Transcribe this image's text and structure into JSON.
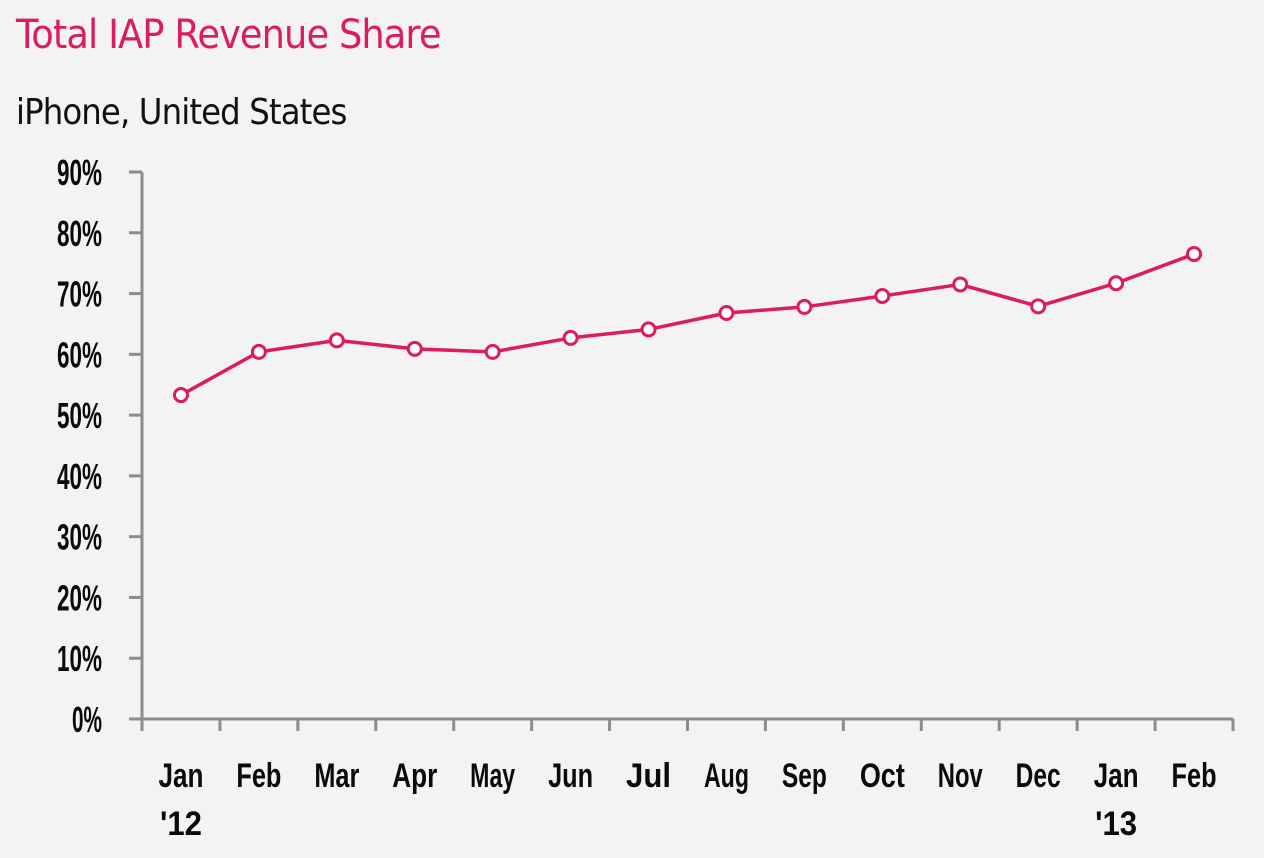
{
  "chart_data": {
    "type": "line",
    "title": "Total IAP Revenue Share",
    "subtitle": "iPhone, United States",
    "xlabel": "",
    "ylabel": "",
    "categories": [
      "Jan '12",
      "Feb",
      "Mar",
      "Apr",
      "May",
      "Jun",
      "Jul",
      "Aug",
      "Sep",
      "Oct",
      "Nov",
      "Dec",
      "Jan '13",
      "Feb"
    ],
    "x_tick_labels": [
      {
        "line1": "Jan",
        "line2": "'12"
      },
      {
        "line1": "Feb",
        "line2": ""
      },
      {
        "line1": "Mar",
        "line2": ""
      },
      {
        "line1": "Apr",
        "line2": ""
      },
      {
        "line1": "May",
        "line2": ""
      },
      {
        "line1": "Jun",
        "line2": ""
      },
      {
        "line1": "Jul",
        "line2": ""
      },
      {
        "line1": "Aug",
        "line2": ""
      },
      {
        "line1": "Sep",
        "line2": ""
      },
      {
        "line1": "Oct",
        "line2": ""
      },
      {
        "line1": "Nov",
        "line2": ""
      },
      {
        "line1": "Dec",
        "line2": ""
      },
      {
        "line1": "Jan",
        "line2": "'13"
      },
      {
        "line1": "Feb",
        "line2": ""
      }
    ],
    "series": [
      {
        "name": "Total IAP Revenue Share",
        "color": "#dd1c5b",
        "values": [
          53.3,
          60.4,
          62.3,
          60.9,
          60.4,
          62.7,
          64.1,
          66.8,
          67.8,
          69.6,
          71.5,
          67.9,
          71.7,
          76.5
        ]
      }
    ],
    "ylim": [
      0,
      90
    ],
    "y_ticks": [
      0,
      10,
      20,
      30,
      40,
      50,
      60,
      70,
      80,
      90
    ],
    "y_tick_labels": [
      "0%",
      "10%",
      "20%",
      "30%",
      "40%",
      "50%",
      "60%",
      "70%",
      "80%",
      "90%"
    ],
    "grid": false,
    "legend": "none"
  },
  "colors": {
    "accent": "#dd1c5b",
    "axis": "#8c8c8c",
    "background": "#f3f3f3",
    "text": "#0a0a0a"
  }
}
